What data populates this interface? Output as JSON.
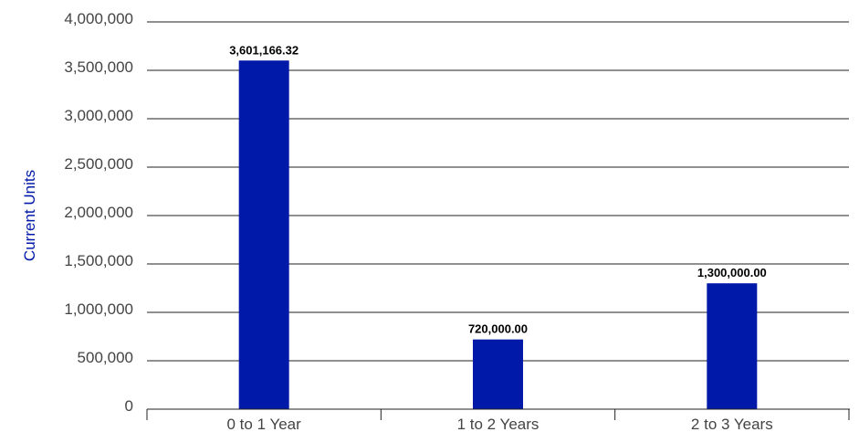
{
  "chart_data": {
    "type": "bar",
    "categories": [
      "0 to 1 Year",
      "1 to 2 Years",
      "2 to 3 Years"
    ],
    "values": [
      3601166.32,
      720000.0,
      1300000.0
    ],
    "data_labels": [
      "3,601,166.32",
      "720,000.00",
      "1,300,000.00"
    ],
    "title": "",
    "xlabel": "",
    "ylabel": "Current Units",
    "ylim": [
      0,
      4000000
    ],
    "yticks": [
      0,
      500000,
      1000000,
      1500000,
      2000000,
      2500000,
      3000000,
      3500000,
      4000000
    ],
    "ytick_labels": [
      "0",
      "500,000",
      "1,000,000",
      "1,500,000",
      "2,000,000",
      "2,500,000",
      "3,000,000",
      "3,500,000",
      "4,000,000"
    ],
    "grid": true,
    "legend": "none",
    "colors": {
      "bar": "#0019A8",
      "ylabel": "#0019A8"
    }
  }
}
